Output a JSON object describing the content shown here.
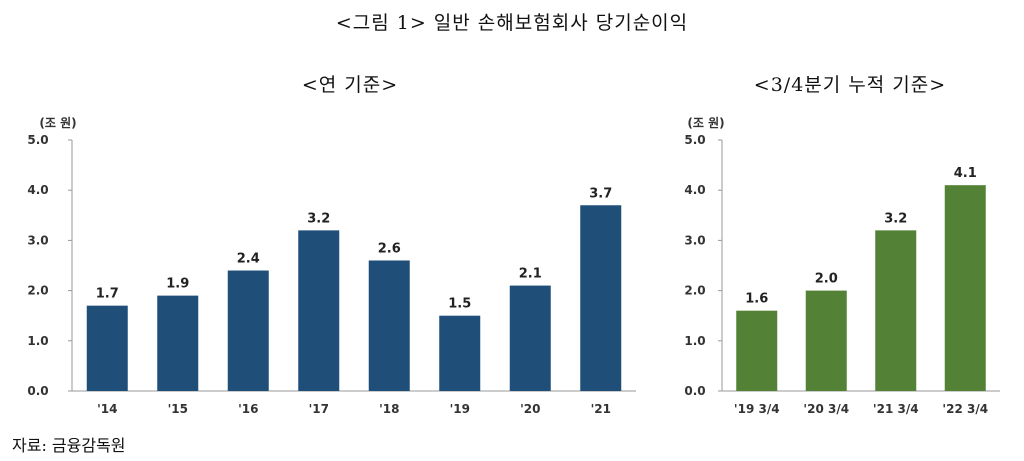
{
  "figure_title": "<그림 1> 일반 손해보험회사 당기순이익",
  "source": "자료: 금융감독원",
  "chart_data": [
    {
      "type": "bar",
      "title": "<연 기준>",
      "unit_label": "(조 원)",
      "categories": [
        "'14",
        "'15",
        "'16",
        "'17",
        "'18",
        "'19",
        "'20",
        "'21"
      ],
      "values": [
        1.7,
        1.9,
        2.4,
        3.2,
        2.6,
        1.5,
        2.1,
        3.7
      ],
      "value_labels": [
        "1.7",
        "1.9",
        "2.4",
        "3.2",
        "2.6",
        "1.5",
        "2.1",
        "3.7"
      ],
      "yticks": [
        "0.0",
        "1.0",
        "2.0",
        "3.0",
        "4.0",
        "5.0"
      ],
      "ylim": [
        0,
        5
      ],
      "color": "#1F4E79",
      "grid": false
    },
    {
      "type": "bar",
      "title": "<3/4분기 누적 기준>",
      "unit_label": "(조 원)",
      "categories": [
        "'19 3/4",
        "'20 3/4",
        "'21 3/4",
        "'22 3/4"
      ],
      "values": [
        1.6,
        2.0,
        3.2,
        4.1
      ],
      "value_labels": [
        "1.6",
        "2.0",
        "3.2",
        "4.1"
      ],
      "yticks": [
        "0.0",
        "1.0",
        "2.0",
        "3.0",
        "4.0",
        "5.0"
      ],
      "ylim": [
        0,
        5
      ],
      "color": "#538135",
      "grid": false
    }
  ]
}
